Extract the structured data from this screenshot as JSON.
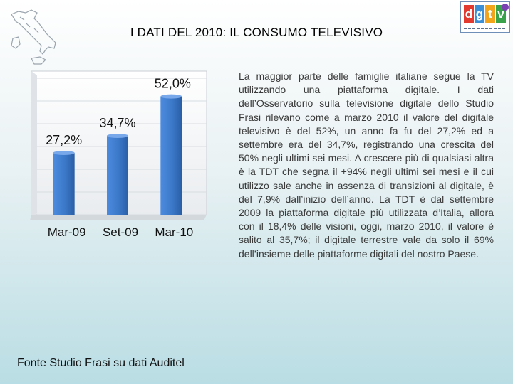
{
  "header": {
    "title": "I DATI DEL 2010: IL CONSUMO TELEVISIVO"
  },
  "logo": {
    "letters": [
      "d",
      "g",
      "t",
      "v"
    ],
    "colors": [
      "#e23a2e",
      "#3a8fd6",
      "#f2a51b",
      "#3aa24a"
    ]
  },
  "chart_data": {
    "type": "bar",
    "categories": [
      "Mar-09",
      "Set-09",
      "Mar-10"
    ],
    "values": [
      27.2,
      34.7,
      52.0
    ],
    "data_labels": [
      "27,2%",
      "34,7%",
      "52,0%"
    ],
    "ylim": [
      0,
      60
    ],
    "grid": true,
    "bar_color": "#3b78c8"
  },
  "main": {
    "paragraph": "La maggior parte delle famiglie italiane segue la TV utilizzando una piattaforma digitale. I dati dell’Osservatorio sulla televisione digitale dello Studio Frasi rilevano come a marzo 2010 il valore del digitale televisivo è del 52%, un anno fa fu del 27,2% ed a settembre era del 34,7%, registrando una crescita del 50% negli ultimi sei mesi. A crescere più di qualsiasi altra è la TDT che segna il +94% negli ultimi sei mesi e il cui utilizzo sale anche in assenza di transizioni al digitale, è del 7,9% dall’inizio dell’anno. La TDT è dal settembre 2009 la piattaforma digitale più utilizzata d’Italia, allora con il 18,4% delle visioni, oggi, marzo 2010, il valore è salito al 35,7%; il digitale terrestre vale da solo il 69% dell’insieme delle piattaforme digitali del nostro Paese."
  },
  "footer": {
    "source": "Fonte Studio Frasi su dati Auditel"
  }
}
